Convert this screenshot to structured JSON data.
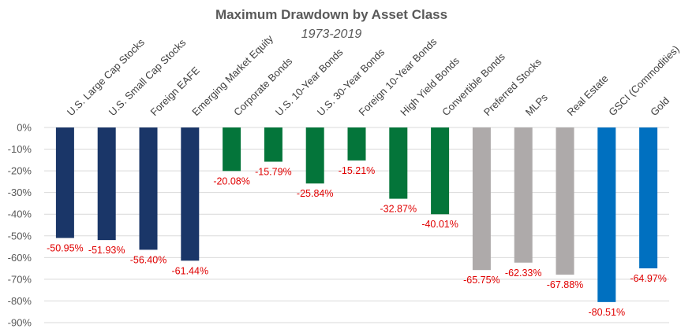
{
  "chart_data": {
    "type": "bar",
    "title": "Maximum Drawdown by Asset Class",
    "subtitle": "1973-2019",
    "xlabel": "",
    "ylabel": "",
    "ylim": [
      -90,
      0
    ],
    "y_ticks": [
      "0%",
      "-10%",
      "-20%",
      "-30%",
      "-40%",
      "-50%",
      "-60%",
      "-70%",
      "-80%",
      "-90%"
    ],
    "y_tick_values": [
      0,
      -10,
      -20,
      -30,
      -40,
      -50,
      -60,
      -70,
      -80,
      -90
    ],
    "grid": true,
    "legend": "none",
    "categories": [
      "U.S. Large Cap Stocks",
      "U.S. Small Cap Stocks",
      "Foreign EAFE",
      "Emerging Market Equity",
      "Corporate Bonds",
      "U.S. 10-Year Bonds",
      "U.S. 30-Year Bonds",
      "Foreign 10-Year Bonds",
      "High Yield Bonds",
      "Convertible Bonds",
      "Preferred Stocks",
      "MLPs",
      "Real Estate",
      "GSCI (Commodities)",
      "Gold"
    ],
    "values": [
      -50.95,
      -51.93,
      -56.4,
      -61.44,
      -20.08,
      -15.79,
      -25.84,
      -15.21,
      -32.87,
      -40.01,
      -65.75,
      -62.33,
      -67.88,
      -80.51,
      -64.97
    ],
    "value_labels": [
      "-50.95%",
      "-51.93%",
      "-56.40%",
      "-61.44%",
      "-20.08%",
      "-15.79%",
      "-25.84%",
      "-15.21%",
      "-32.87%",
      "-40.01%",
      "-65.75%",
      "-62.33%",
      "-67.88%",
      "-80.51%",
      "-64.97%"
    ],
    "bar_colors": [
      "#1a3668",
      "#1a3668",
      "#1a3668",
      "#1a3668",
      "#04753a",
      "#04753a",
      "#04753a",
      "#04753a",
      "#04753a",
      "#04753a",
      "#aeaaaa",
      "#aeaaaa",
      "#aeaaaa",
      "#0070c0",
      "#0070c0"
    ],
    "label_color": "#e00000"
  }
}
